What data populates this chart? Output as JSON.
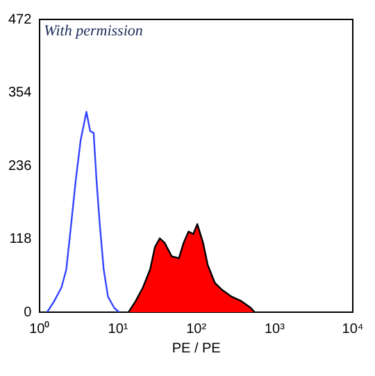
{
  "chart_data": {
    "type": "line",
    "xlabel": "PE / PE",
    "annotations": [
      "With permission"
    ],
    "log": "x",
    "xlim": [
      1,
      10000
    ],
    "xticks": [
      {
        "value": 1,
        "label": "10⁰"
      },
      {
        "value": 10,
        "label": "10¹"
      },
      {
        "value": 100,
        "label": "10²"
      },
      {
        "value": 1000,
        "label": "10³"
      },
      {
        "value": 10000,
        "label": "10⁴"
      }
    ],
    "ylim": [
      0,
      472
    ],
    "yticks": [
      0,
      118,
      236,
      354,
      472
    ],
    "grid": false,
    "legend": false,
    "marker": "none",
    "series": [
      {
        "type": "line",
        "color": "#3344ff",
        "x": [
          1.24,
          1.53,
          1.89,
          2.18,
          2.51,
          2.88,
          3.33,
          3.94,
          4.4,
          4.87,
          5.3,
          5.84,
          6.55,
          7.43,
          8.92,
          10.3
        ],
        "values": [
          0,
          18,
          40,
          69,
          141,
          213,
          278,
          323,
          292,
          289,
          213,
          141,
          69,
          25,
          7,
          0
        ]
      },
      {
        "type": "area",
        "color": "#ff0000",
        "x": [
          13.6,
          16.8,
          20.8,
          25.7,
          29.6,
          34.1,
          39.3,
          48.5,
          60,
          68.9,
          79.6,
          91.5,
          103,
          122,
          140,
          173,
          213,
          283,
          375,
          497,
          557
        ],
        "values": [
          0,
          18,
          40,
          69,
          105,
          119,
          112,
          90,
          87,
          112,
          130,
          126,
          142,
          112,
          76,
          47,
          36,
          25,
          18,
          7,
          0
        ]
      }
    ]
  }
}
